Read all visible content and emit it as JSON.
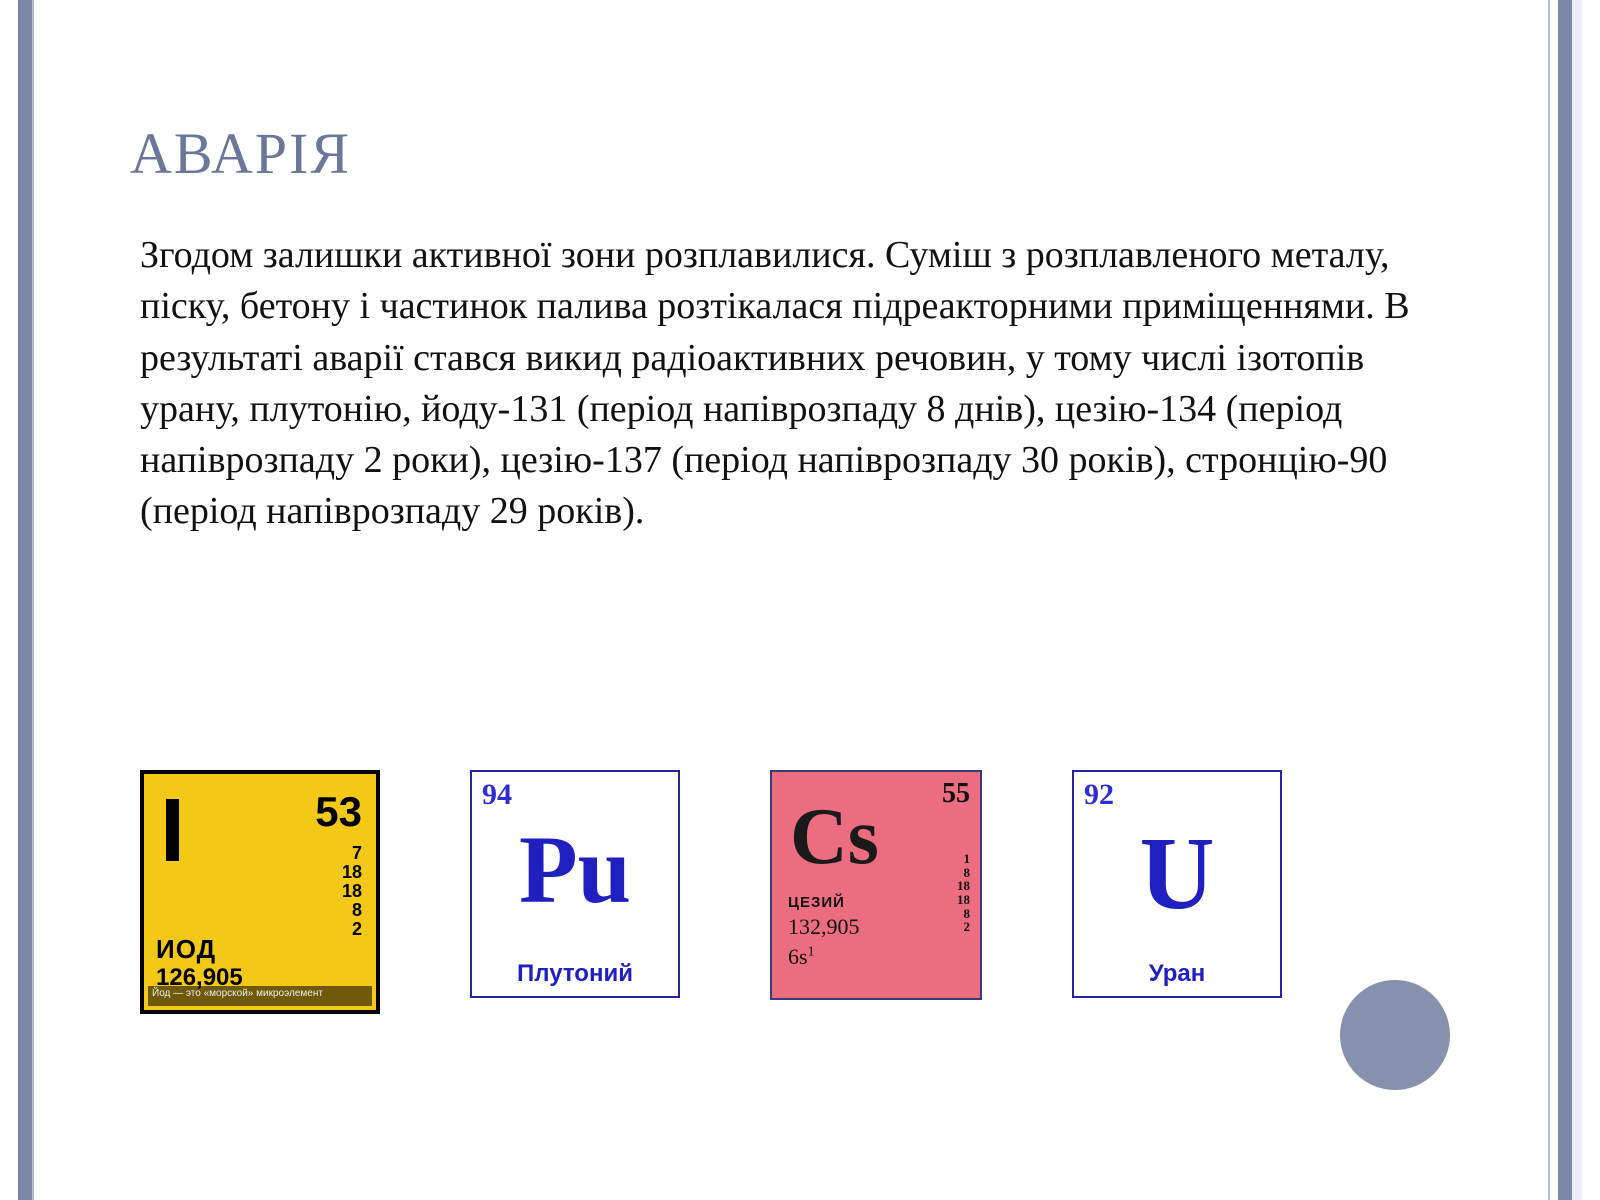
{
  "colors": {
    "accent": "#7c87a8",
    "title": "#6b769a",
    "blue": "#2020c0",
    "yellow": "#f4c816",
    "pink": "#ec6d7f",
    "circle": "#8790ad",
    "rail_light": "#b7bdd1"
  },
  "title": "АВАРІЯ",
  "body_text": "Згодом залишки активної зони розплавилися. Суміш з розплавленого металу, піску, бетону і частинок палива розтікалася підреакторними приміщеннями. В результаті аварії стався викид радіоактивних речовин, у тому числі ізотопів урану, плутонію, йоду-131 (період напіврозпаду 8 днів), цезію-134 (період напіврозпаду 2 роки), цезію-137 (період напіврозпаду 30 років), стронцію-90 (період напіврозпаду 29 років).",
  "elements": {
    "iodine": {
      "symbol": "I",
      "number": "53",
      "shells": [
        "7",
        "18",
        "18",
        "8",
        "2"
      ],
      "name": "ИОД",
      "mass": "126,905",
      "footnote": "Йод — это «морской» микроэлемент",
      "bg": "#f4c816",
      "border": "#000000"
    },
    "plutonium": {
      "symbol": "Pu",
      "number": "94",
      "name": "Плутоний",
      "bg": "#ffffff",
      "text": "#2020c0"
    },
    "caesium": {
      "symbol": "Cs",
      "number": "55",
      "name": "ЦЕЗИЙ",
      "mass": "132,905",
      "orbital_base": "6s",
      "orbital_sup": "1",
      "shells": [
        "1",
        "8",
        "18",
        "18",
        "8",
        "2"
      ],
      "bg": "#ec6d7f"
    },
    "uranium": {
      "symbol": "U",
      "number": "92",
      "name": "Уран",
      "bg": "#ffffff",
      "text": "#2020c0"
    }
  }
}
